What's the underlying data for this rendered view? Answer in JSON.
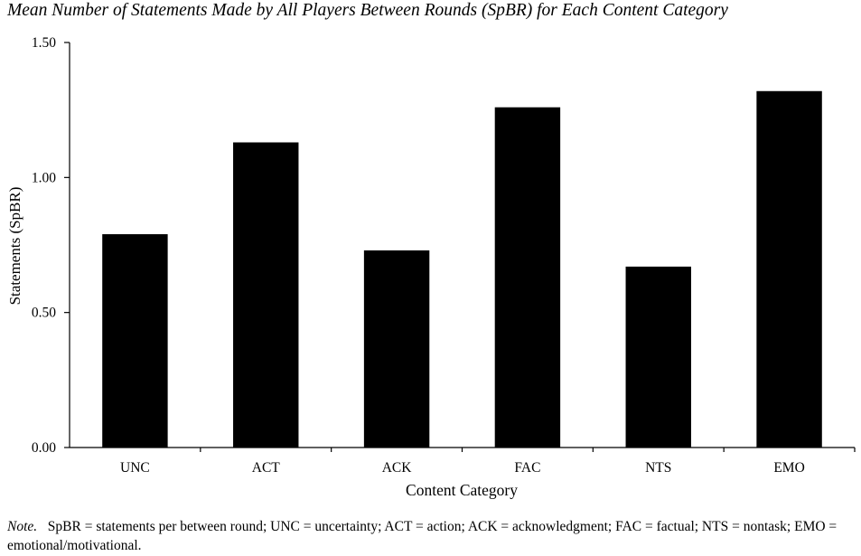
{
  "chart_data": {
    "type": "bar",
    "title": "Mean Number of Statements Made by All Players Between Rounds (SpBR) for Each Content Category",
    "xlabel": "Content Category",
    "ylabel": "Statements (SpBR)",
    "categories": [
      "UNC",
      "ACT",
      "ACK",
      "FAC",
      "NTS",
      "EMO"
    ],
    "values": [
      0.79,
      1.13,
      0.73,
      1.26,
      0.67,
      1.32
    ],
    "ylim": [
      0,
      1.5
    ],
    "yticks": [
      "0.00",
      "0.50",
      "1.00",
      "1.50"
    ],
    "grid": false,
    "bar_color": "#000000"
  },
  "note": {
    "label": "Note.",
    "text": "SpBR = statements per between round; UNC = uncertainty; ACT = action; ACK = acknowledgment; FAC = factual; NTS = nontask; EMO = emotional/motivational."
  }
}
